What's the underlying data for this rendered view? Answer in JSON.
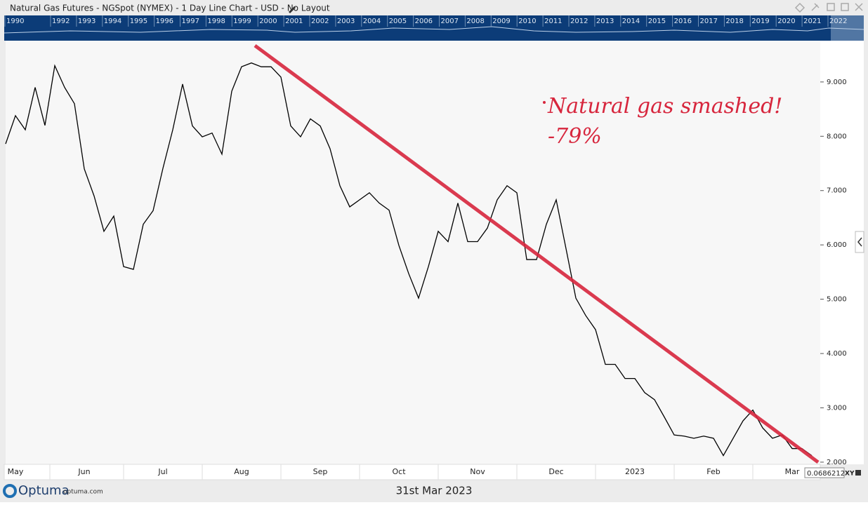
{
  "window": {
    "title": "Natural Gas Futures - NGSpot (NYMEX) - 1 Day Line Chart - USD - No Layout",
    "navigator_years": [
      "1990",
      "1992",
      "1993",
      "1994",
      "1995",
      "1996",
      "1997",
      "1998",
      "1999",
      "2000",
      "2001",
      "2002",
      "2003",
      "2004",
      "2005",
      "2006",
      "2007",
      "2008",
      "2009",
      "2010",
      "2011",
      "2012",
      "2013",
      "2014",
      "2015",
      "2016",
      "2017",
      "2018",
      "2019",
      "2020",
      "2021",
      "2022"
    ],
    "cursor_value": "0.0686212",
    "xy_button": "XY",
    "brand": "Optuma",
    "brand_url": "optuma.com",
    "date": "31st Mar 2023"
  },
  "chart_data": {
    "type": "line",
    "color": "#000000",
    "categories": [
      null,
      "May",
      null,
      null,
      null,
      null,
      null,
      null,
      "Jun",
      null,
      null,
      null,
      null,
      null,
      null,
      null,
      "Jul",
      null,
      null,
      null,
      null,
      null,
      null,
      null,
      "Aug",
      null,
      null,
      null,
      null,
      null,
      null,
      null,
      "Sep",
      null,
      null,
      null,
      null,
      null,
      null,
      null,
      "Oct",
      null,
      null,
      null,
      null,
      null,
      null,
      null,
      "Nov",
      null,
      null,
      null,
      null,
      null,
      null,
      null,
      "Dec",
      null,
      null,
      null,
      null,
      null,
      null,
      null,
      "2023",
      null,
      null,
      null,
      null,
      null,
      null,
      null,
      "Feb",
      null,
      null,
      null,
      null,
      null,
      null,
      null,
      "Mar",
      null,
      null
    ],
    "values": [
      7.86,
      8.38,
      8.12,
      8.9,
      8.2,
      9.3,
      8.9,
      8.6,
      7.4,
      6.9,
      6.25,
      6.53,
      5.6,
      5.55,
      6.38,
      6.63,
      7.41,
      8.12,
      8.96,
      8.19,
      7.99,
      8.06,
      7.67,
      8.83,
      9.28,
      9.35,
      9.28,
      9.28,
      9.09,
      8.19,
      7.99,
      8.32,
      8.19,
      7.77,
      7.09,
      6.7,
      6.83,
      6.96,
      6.77,
      6.64,
      5.99,
      5.47,
      5.02,
      5.6,
      6.25,
      6.06,
      6.77,
      6.06,
      6.06,
      6.31,
      6.83,
      7.09,
      6.96,
      5.73,
      5.73,
      6.38,
      6.83,
      5.93,
      5.02,
      4.7,
      4.44,
      3.8,
      3.8,
      3.54,
      3.54,
      3.28,
      3.15,
      2.83,
      2.5,
      2.48,
      2.44,
      2.48,
      2.44,
      2.12,
      2.44,
      2.76,
      2.96,
      2.63,
      2.44,
      2.5,
      2.25,
      2.25,
      2.12
    ],
    "ylim": [
      1.96,
      9.76
    ],
    "yticks": [
      {
        "value": 2,
        "label": "2.000"
      },
      {
        "value": 3,
        "label": "3.000"
      },
      {
        "value": 4,
        "label": "4.000"
      },
      {
        "value": 5,
        "label": "5.000"
      },
      {
        "value": 6,
        "label": "6.000"
      },
      {
        "value": 7,
        "label": "7.000"
      },
      {
        "value": 8,
        "label": "8.000"
      },
      {
        "value": 9,
        "label": "9.000"
      }
    ],
    "annotations": [
      "Natural gas smashed!",
      "-79%"
    ]
  }
}
